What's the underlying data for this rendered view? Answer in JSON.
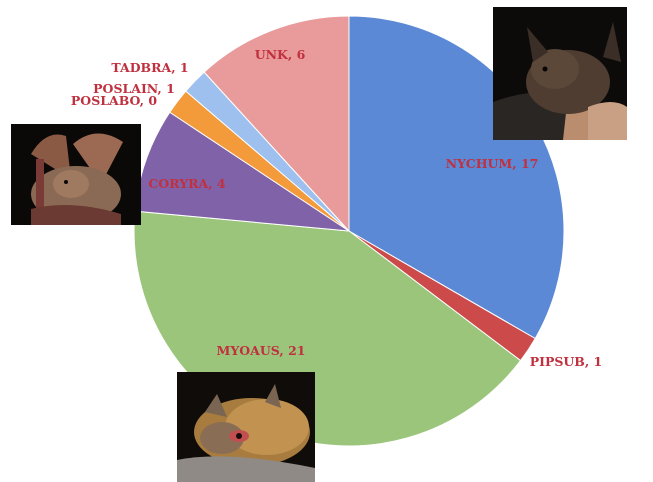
{
  "chart_data": {
    "type": "pie",
    "title": "",
    "slices": [
      {
        "label": "NYCHUM",
        "value": 17,
        "label_text": "NYCHUM, 17",
        "color": "#5b89d6",
        "highlight": "#9cbdf0"
      },
      {
        "label": "PIPSUB",
        "value": 1,
        "label_text": "PIPSUB, 1",
        "color": "#cc4a4a",
        "highlight": "#e88a8a"
      },
      {
        "label": "MYOAUS",
        "value": 21,
        "label_text": "MYOAUS, 21",
        "color": "#9bc57a",
        "highlight": "#c8e6a6"
      },
      {
        "label": "CORYRA",
        "value": 4,
        "label_text": "CORYRA, 4",
        "color": "#8062a8",
        "highlight": "#b9a3d4"
      },
      {
        "label": "POSLABO",
        "value": 0,
        "label_text": "POSLABO, 0",
        "color": "#dd8f3c",
        "highlight": "#f3b77a"
      },
      {
        "label": "POSLAIN",
        "value": 1,
        "label_text": "POSLAIN, 1",
        "color": "#f39a3a",
        "highlight": "#f8c082"
      },
      {
        "label": "TADBRA",
        "value": 1,
        "label_text": "TADBRA, 1",
        "color": "#9ec0ef",
        "highlight": "#c8dcf7"
      },
      {
        "label": "UNK",
        "value": 6,
        "label_text": "UNK, 6",
        "color": "#e99a9a",
        "highlight": "#f4c4c4"
      }
    ],
    "label_color": "#c0303f",
    "legend": "none"
  },
  "images": [
    {
      "name": "bat-photo-top-right",
      "subject": "brown bat held in hand"
    },
    {
      "name": "bat-photo-left",
      "subject": "long-eared bat"
    },
    {
      "name": "bat-photo-bottom",
      "subject": "small mouse-eared bat"
    }
  ]
}
